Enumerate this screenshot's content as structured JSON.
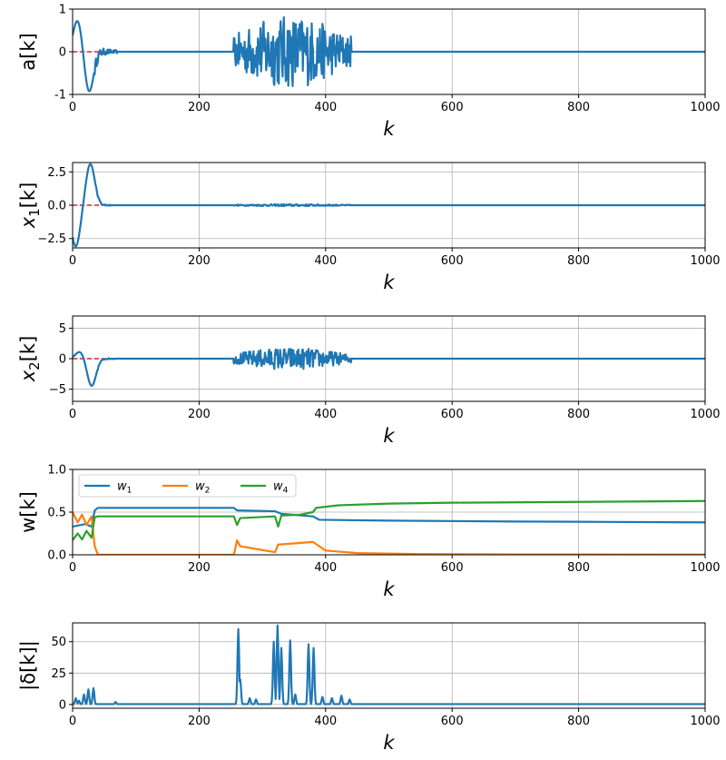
{
  "chart_data": [
    {
      "type": "line",
      "ylabel": "a[k]",
      "xlabel": "k",
      "xlim": [
        0,
        1000
      ],
      "ylim": [
        -1,
        1
      ],
      "xticks": [
        0,
        200,
        400,
        600,
        800,
        1000
      ],
      "yticks": [
        -1,
        0,
        1
      ],
      "grid": true,
      "reference": {
        "value": 0,
        "x_end": 60,
        "color": "#d62728",
        "style": "dashed"
      },
      "series": [
        {
          "name": "a",
          "color": "#1f77b4",
          "segments": [
            {
              "kind": "transient",
              "x_start": 0,
              "x_end": 70,
              "peaks": [
                {
                  "x": 8,
                  "y": 0.75
                },
                {
                  "x": 26,
                  "y": -0.95
                }
              ],
              "envelope": 0.15
            },
            {
              "kind": "burst",
              "x_start": 255,
              "x_end": 440,
              "envelope": 0.85
            }
          ]
        }
      ]
    },
    {
      "type": "line",
      "ylabel": "x_1[k]",
      "xlabel": "k",
      "xlim": [
        0,
        1000
      ],
      "ylim": [
        -3.2,
        3.2
      ],
      "xticks": [
        0,
        200,
        400,
        600,
        800,
        1000
      ],
      "yticks": [
        -2.5,
        0.0,
        2.5
      ],
      "ytick_labels": [
        "−2.5",
        "0.0",
        "2.5"
      ],
      "grid": true,
      "reference": {
        "value": 0,
        "x_end": 55,
        "color": "#d62728",
        "style": "dashed"
      },
      "series": [
        {
          "name": "x1",
          "color": "#1f77b4",
          "segments": [
            {
              "kind": "transient",
              "x_start": 0,
              "x_end": 60,
              "peaks": [
                {
                  "x": 5,
                  "y": -3.1
                },
                {
                  "x": 28,
                  "y": 3.1
                }
              ],
              "envelope": 0.1
            },
            {
              "kind": "burst",
              "x_start": 255,
              "x_end": 440,
              "envelope": 0.08
            }
          ]
        }
      ]
    },
    {
      "type": "line",
      "ylabel": "x_2[k]",
      "xlabel": "k",
      "xlim": [
        0,
        1000
      ],
      "ylim": [
        -7,
        7
      ],
      "xticks": [
        0,
        200,
        400,
        600,
        800,
        1000
      ],
      "yticks": [
        -5,
        0,
        5
      ],
      "ytick_labels": [
        "−5",
        "0",
        "5"
      ],
      "grid": true,
      "reference": {
        "value": 0,
        "x_end": 65,
        "color": "#d62728",
        "style": "dashed"
      },
      "series": [
        {
          "name": "x2",
          "color": "#1f77b4",
          "segments": [
            {
              "kind": "transient",
              "x_start": 0,
              "x_end": 70,
              "peaks": [
                {
                  "x": 12,
                  "y": 1.2
                },
                {
                  "x": 30,
                  "y": -4.5
                }
              ],
              "envelope": 0.2
            },
            {
              "kind": "burst",
              "x_start": 255,
              "x_end": 440,
              "envelope": 1.8
            }
          ]
        }
      ]
    },
    {
      "type": "line",
      "ylabel": "w[k]",
      "xlabel": "k",
      "xlim": [
        0,
        1000
      ],
      "ylim": [
        0.0,
        1.0
      ],
      "xticks": [
        0,
        200,
        400,
        600,
        800,
        1000
      ],
      "yticks": [
        0.0,
        0.5,
        1.0
      ],
      "ytick_labels": [
        "0.0",
        "0.5",
        "1.0"
      ],
      "grid": true,
      "legend": {
        "placement": "upper-left",
        "entries": [
          "w_1",
          "w_2",
          "w_4"
        ]
      },
      "series": [
        {
          "name": "w_1",
          "label_base": "w",
          "label_sub": "1",
          "color": "#1f77b4",
          "x": [
            0,
            20,
            30,
            35,
            40,
            255,
            260,
            320,
            330,
            380,
            390,
            500,
            700,
            850,
            1000
          ],
          "y": [
            0.33,
            0.36,
            0.33,
            0.52,
            0.55,
            0.55,
            0.52,
            0.51,
            0.48,
            0.45,
            0.41,
            0.4,
            0.39,
            0.385,
            0.38
          ]
        },
        {
          "name": "w_2",
          "label_base": "w",
          "label_sub": "2",
          "color": "#ff7f0e",
          "x": [
            0,
            8,
            15,
            22,
            30,
            35,
            40,
            255,
            260,
            265,
            320,
            325,
            380,
            400,
            450,
            550,
            700,
            1000
          ],
          "y": [
            0.5,
            0.38,
            0.47,
            0.35,
            0.45,
            0.1,
            0.0,
            0.0,
            0.17,
            0.1,
            0.03,
            0.12,
            0.15,
            0.05,
            0.02,
            0.008,
            0.004,
            0.003
          ]
        },
        {
          "name": "w_4",
          "label_base": "w",
          "label_sub": "4",
          "color": "#2ca02c",
          "x": [
            0,
            8,
            15,
            22,
            30,
            35,
            40,
            255,
            260,
            265,
            320,
            325,
            330,
            360,
            380,
            385,
            420,
            500,
            600,
            800,
            1000
          ],
          "y": [
            0.17,
            0.25,
            0.18,
            0.28,
            0.2,
            0.44,
            0.45,
            0.45,
            0.35,
            0.43,
            0.45,
            0.33,
            0.46,
            0.47,
            0.5,
            0.55,
            0.58,
            0.6,
            0.61,
            0.62,
            0.63
          ]
        }
      ]
    },
    {
      "type": "line",
      "ylabel": "|δ[k]|",
      "xlabel": "k",
      "xlim": [
        0,
        1000
      ],
      "ylim": [
        -3,
        65
      ],
      "xticks": [
        0,
        200,
        400,
        600,
        800,
        1000
      ],
      "yticks": [
        0,
        25,
        50
      ],
      "grid": true,
      "series": [
        {
          "name": "delta",
          "color": "#1f77b4",
          "spikes": [
            {
              "x": 5,
              "y": 5
            },
            {
              "x": 10,
              "y": 3
            },
            {
              "x": 18,
              "y": 8
            },
            {
              "x": 25,
              "y": 12
            },
            {
              "x": 33,
              "y": 13
            },
            {
              "x": 68,
              "y": 2
            },
            {
              "x": 262,
              "y": 60
            },
            {
              "x": 265,
              "y": 20
            },
            {
              "x": 280,
              "y": 5
            },
            {
              "x": 290,
              "y": 4
            },
            {
              "x": 318,
              "y": 50
            },
            {
              "x": 324,
              "y": 63
            },
            {
              "x": 330,
              "y": 45
            },
            {
              "x": 344,
              "y": 51
            },
            {
              "x": 352,
              "y": 8
            },
            {
              "x": 373,
              "y": 48
            },
            {
              "x": 381,
              "y": 45
            },
            {
              "x": 395,
              "y": 6
            },
            {
              "x": 410,
              "y": 5
            },
            {
              "x": 425,
              "y": 7
            },
            {
              "x": 438,
              "y": 4
            }
          ]
        }
      ]
    }
  ]
}
